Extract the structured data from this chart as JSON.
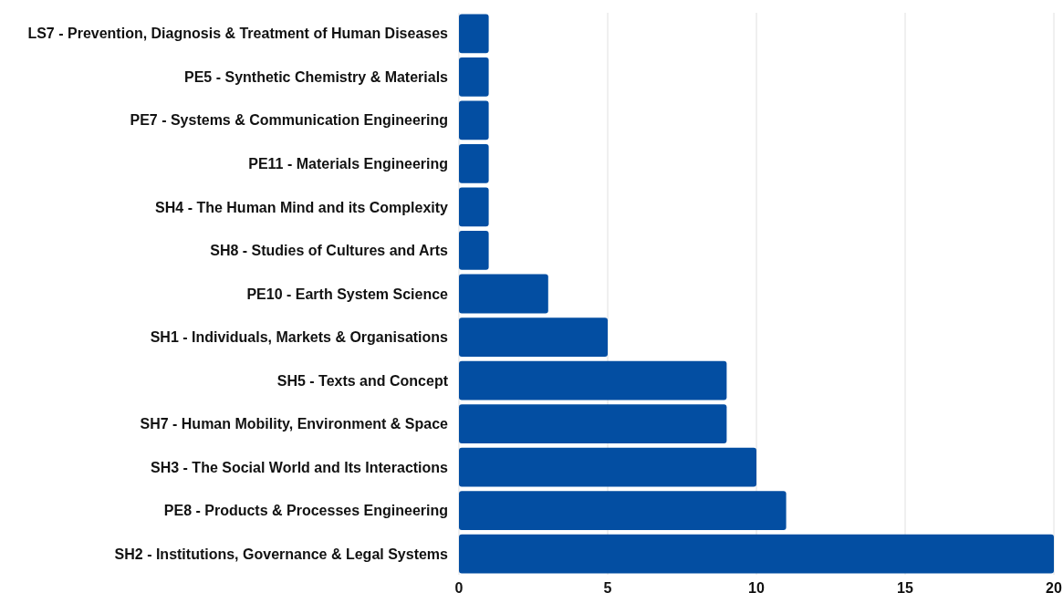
{
  "chart_data": {
    "type": "bar",
    "orientation": "horizontal",
    "categories": [
      "LS7 - Prevention, Diagnosis & Treatment of Human Diseases",
      "PE5 - Synthetic Chemistry & Materials",
      "PE7 - Systems & Communication Engineering",
      "PE11 - Materials Engineering",
      "SH4 - The Human Mind and its Complexity",
      "SH8 - Studies of Cultures and Arts",
      "PE10 - Earth System Science",
      "SH1 - Individuals, Markets & Organisations",
      "SH5 - Texts and Concept",
      "SH7 - Human Mobility, Environment & Space",
      "SH3 - The Social World and Its Interactions",
      "PE8 - Products & Processes Engineering",
      "SH2 - Institutions, Governance & Legal Systems"
    ],
    "values": [
      1,
      1,
      1,
      1,
      1,
      1,
      3,
      5,
      9,
      9,
      10,
      11,
      20
    ],
    "color": "#034ea2",
    "xlim": [
      0,
      20
    ],
    "xticks": [
      0,
      5,
      10,
      15,
      20
    ],
    "grid": "x"
  }
}
